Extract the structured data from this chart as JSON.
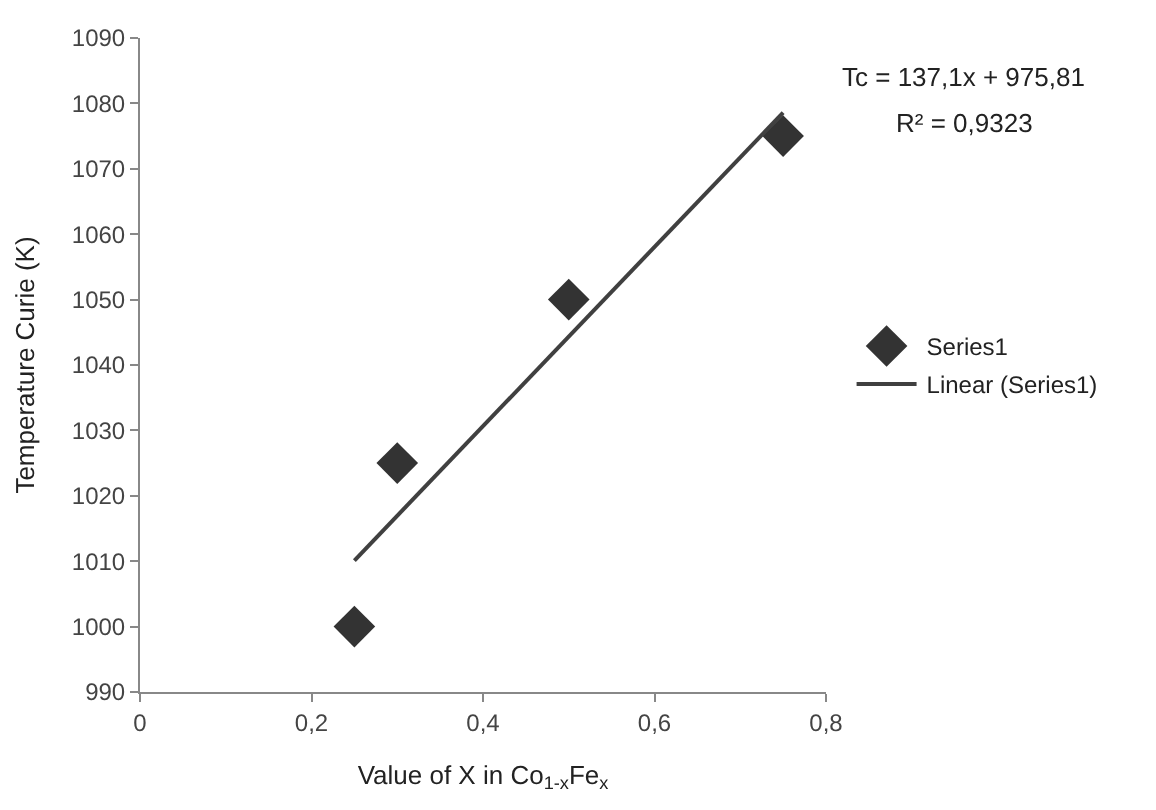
{
  "chart_data": {
    "type": "scatter",
    "xlabel": "Value of X in Co$_{1-x}$Fe$_{x}$",
    "ylabel": "Temperature Curie (K)",
    "series": [
      {
        "name": "Series1",
        "marker": "diamond",
        "color": "#333333",
        "x": [
          0.25,
          0.3,
          0.5,
          0.75
        ],
        "values": [
          1000,
          1025,
          1050,
          1075
        ]
      },
      {
        "name": "Linear (Series1)",
        "type": "line",
        "marker": "none",
        "line_style": "solid",
        "color": "#404040",
        "x": [
          0.25,
          0.75
        ],
        "values": [
          1010.1,
          1078.6
        ]
      }
    ],
    "xlim": [
      0,
      0.8
    ],
    "xticks": [
      0,
      {
        "value": 0.2,
        "label": "0,2"
      },
      {
        "value": 0.4,
        "label": "0,4"
      },
      {
        "value": 0.6,
        "label": "0,6"
      },
      {
        "value": 0.8,
        "label": "0,8"
      }
    ],
    "ylim": [
      990,
      1090
    ],
    "yticks": [
      990,
      1000,
      1010,
      1020,
      1030,
      1040,
      1050,
      1060,
      1070,
      1080,
      1090
    ],
    "annotations": [
      "Tc = 137,1x + 975,81",
      "R² = 0,9323"
    ],
    "legend": "right"
  }
}
